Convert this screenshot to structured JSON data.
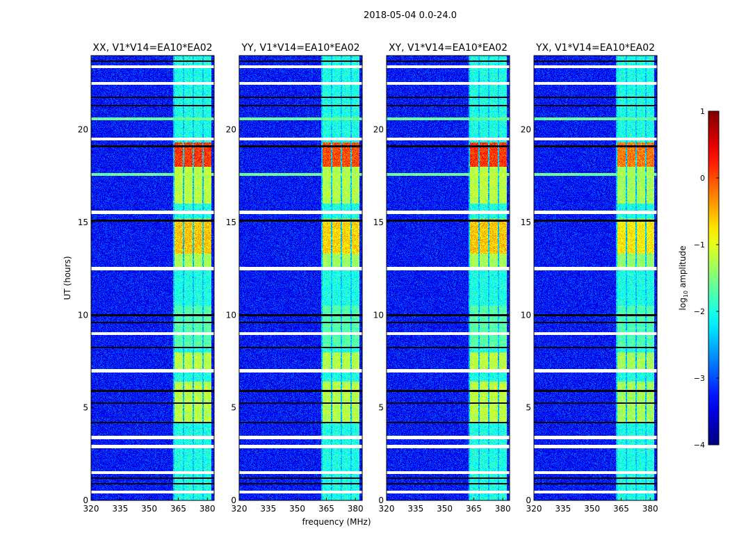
{
  "chart_data": {
    "type": "heatmap",
    "title": "2018-05-04 0.0-24.0",
    "xlabel": "frequency (MHz)",
    "ylabel": "UT (hours)",
    "xlim": [
      320,
      383.5
    ],
    "ylim": [
      0,
      24
    ],
    "xticks": [
      320,
      335,
      350,
      365,
      380
    ],
    "yticks": [
      0,
      5,
      10,
      15,
      20
    ],
    "panels": [
      {
        "title": "XX, V1*V14=EA10*EA02",
        "gain": 1.0
      },
      {
        "title": "YY, V1*V14=EA10*EA02",
        "gain": 0.95
      },
      {
        "title": "XY, V1*V14=EA10*EA02",
        "gain": 1.0
      },
      {
        "title": "YX, V1*V14=EA10*EA02",
        "gain": 0.85
      }
    ],
    "colorbar": {
      "label": "log10 amplitude",
      "label_main": "log",
      "label_sub": "10",
      "label_rest": " amplitude",
      "colormap": "jet",
      "vmin": -4,
      "vmax": 1,
      "ticks": [
        1,
        0,
        -1,
        -2,
        -3,
        -4
      ],
      "tick_labels": [
        "1",
        "0",
        "−1",
        "−2",
        "−3",
        "−4"
      ]
    },
    "background_level": -3.3,
    "rfi_subbands_mhz": [
      [
        363,
        367.5
      ],
      [
        368,
        372.5
      ],
      [
        373,
        377.5
      ],
      [
        378,
        382
      ]
    ],
    "band_base_level": -2.0,
    "bright_periods": [
      {
        "hours": [
          18.0,
          19.3
        ],
        "level": 0.1
      },
      {
        "hours": [
          13.3,
          15.2
        ],
        "level": -0.6
      },
      {
        "hours": [
          12.5,
          13.3
        ],
        "level": -1.3
      },
      {
        "hours": [
          4.2,
          6.4
        ],
        "level": -1.2
      },
      {
        "hours": [
          7.1,
          8.0
        ],
        "level": -1.2
      },
      {
        "hours": [
          16.0,
          18.0
        ],
        "level": -1.2
      },
      {
        "hours": [
          8.3,
          10.5
        ],
        "level": -1.7
      }
    ],
    "broadband_rfi_hours": [
      20.6,
      17.6
    ],
    "flagged_gaps_hours": [
      23.4,
      22.5,
      19.5,
      15.55,
      12.5,
      9.0,
      7.0,
      3.4,
      2.9,
      1.5,
      0.45
    ],
    "dropout_lines_hours": [
      23.7,
      21.75,
      21.3,
      19.1,
      15.1,
      10.0,
      9.6,
      8.25,
      5.9,
      5.25,
      4.2,
      1.2,
      0.9
    ]
  }
}
